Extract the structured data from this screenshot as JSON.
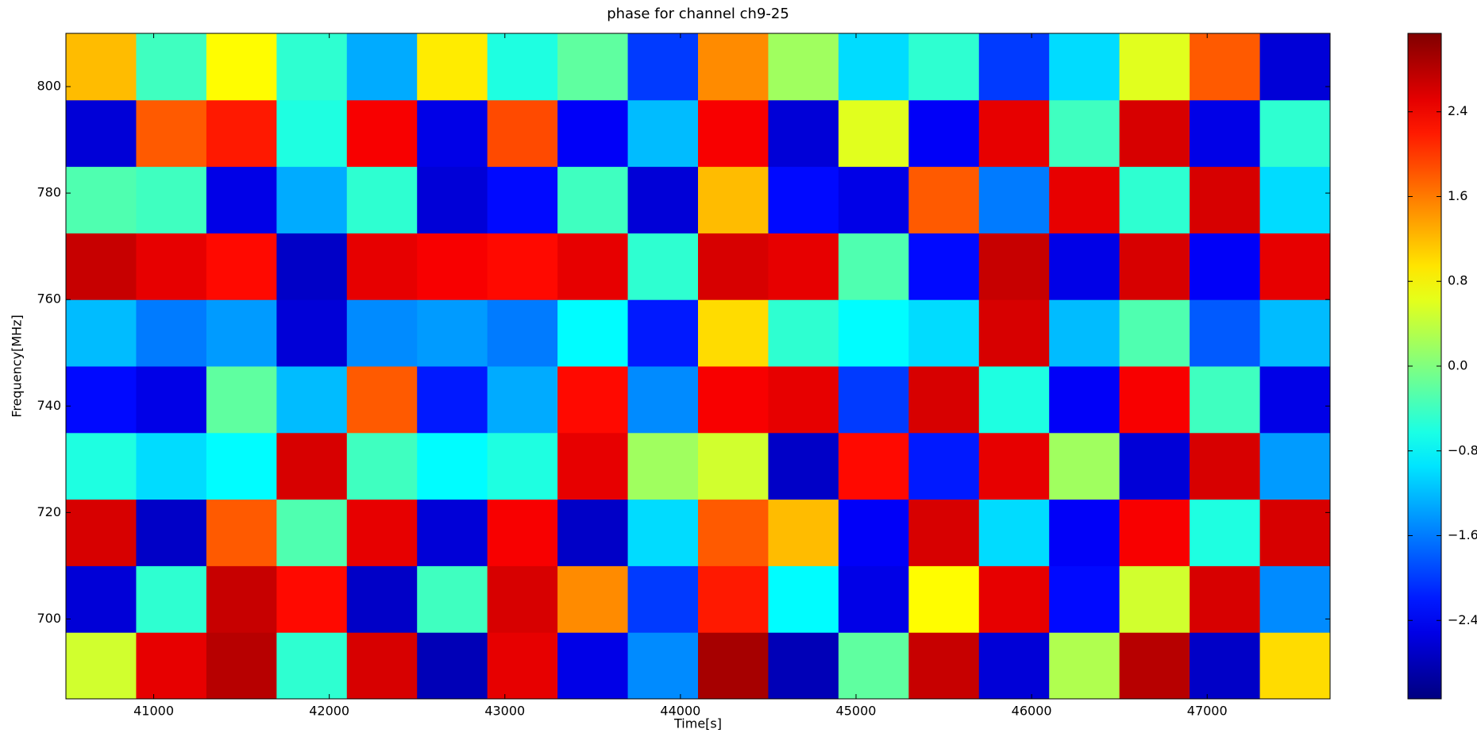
{
  "chart_data": {
    "type": "heatmap",
    "title": "phase for channel ch9-25",
    "x_label": "Time[s]",
    "y_label": "Frequency[MHz]",
    "colormap": "jet",
    "x_edges": [
      40500,
      40900,
      41300,
      41700,
      42100,
      42500,
      42900,
      43300,
      43700,
      44100,
      44500,
      44900,
      45300,
      45700,
      46100,
      46500,
      46900,
      47300,
      47700
    ],
    "y_edges": [
      685,
      697.5,
      710,
      722.5,
      735,
      747.5,
      760,
      772.5,
      785,
      797.5,
      810
    ],
    "z": [
      [
        0.5,
        2.5,
        2.8,
        -0.5,
        2.6,
        -2.8,
        2.5,
        -2.5,
        -1.5,
        2.9,
        -2.8,
        -0.2,
        2.7,
        -2.6,
        0.3,
        2.8,
        -2.7,
        1.0
      ],
      [
        -2.6,
        -0.5,
        2.7,
        2.3,
        -2.7,
        -0.4,
        2.6,
        1.5,
        -2.0,
        2.2,
        -0.8,
        -2.5,
        0.8,
        2.5,
        -2.3,
        0.5,
        2.6,
        -1.5
      ],
      [
        2.6,
        -2.7,
        1.8,
        -0.3,
        2.5,
        -2.6,
        2.4,
        -2.7,
        -1.0,
        1.8,
        1.2,
        -2.4,
        2.6,
        -1.0,
        -2.4,
        2.4,
        -0.6,
        2.6
      ],
      [
        -0.6,
        -1.0,
        -0.8,
        2.6,
        -0.4,
        -0.8,
        -0.6,
        2.5,
        0.2,
        0.5,
        -2.7,
        2.3,
        -2.2,
        2.5,
        0.2,
        -2.6,
        2.6,
        -1.4
      ],
      [
        -2.3,
        -2.5,
        -0.2,
        -1.2,
        1.8,
        -2.2,
        -1.3,
        2.3,
        -1.5,
        2.4,
        2.5,
        -2.0,
        2.6,
        -0.6,
        -2.4,
        2.4,
        -0.4,
        -2.5
      ],
      [
        -1.2,
        -1.6,
        -1.4,
        -2.6,
        -1.5,
        -1.4,
        -1.6,
        -0.8,
        -2.2,
        1.0,
        -0.5,
        -0.8,
        -1.0,
        2.6,
        -1.2,
        -0.3,
        -1.8,
        -1.2
      ],
      [
        2.7,
        2.5,
        2.3,
        -2.7,
        2.5,
        2.4,
        2.3,
        2.5,
        -0.5,
        2.6,
        2.5,
        -0.3,
        -2.3,
        2.7,
        -2.5,
        2.6,
        -2.4,
        2.5
      ],
      [
        -0.3,
        -0.4,
        -2.5,
        -1.3,
        -0.5,
        -2.6,
        -2.3,
        -0.4,
        -2.6,
        1.2,
        -2.3,
        -2.5,
        1.8,
        -1.6,
        2.5,
        -0.5,
        2.6,
        -1.0
      ],
      [
        -2.6,
        1.8,
        2.2,
        -0.6,
        2.4,
        -2.5,
        1.9,
        -2.4,
        -1.2,
        2.4,
        -2.6,
        0.6,
        -2.4,
        2.5,
        -0.4,
        2.6,
        -2.5,
        -0.5
      ],
      [
        1.2,
        -0.4,
        0.8,
        -0.5,
        -1.3,
        0.9,
        -0.6,
        -0.2,
        -2.0,
        1.5,
        0.2,
        -1.0,
        -0.5,
        -2.0,
        -1.0,
        0.6,
        1.8,
        -2.6
      ]
    ],
    "xlim": [
      40500,
      47700
    ],
    "xticks": [
      41000,
      42000,
      43000,
      44000,
      45000,
      46000,
      47000
    ],
    "ylim": [
      685,
      810
    ],
    "yticks": [
      700,
      720,
      740,
      760,
      780,
      800
    ],
    "clim": [
      -3.14,
      3.14
    ],
    "cticks": [
      {
        "value": -2.4,
        "label": "−2.4"
      },
      {
        "value": -1.6,
        "label": "−1.6"
      },
      {
        "value": -0.8,
        "label": "−0.8"
      },
      {
        "value": 0,
        "label": "0.0"
      },
      0.8,
      1.6,
      2.4
    ]
  }
}
